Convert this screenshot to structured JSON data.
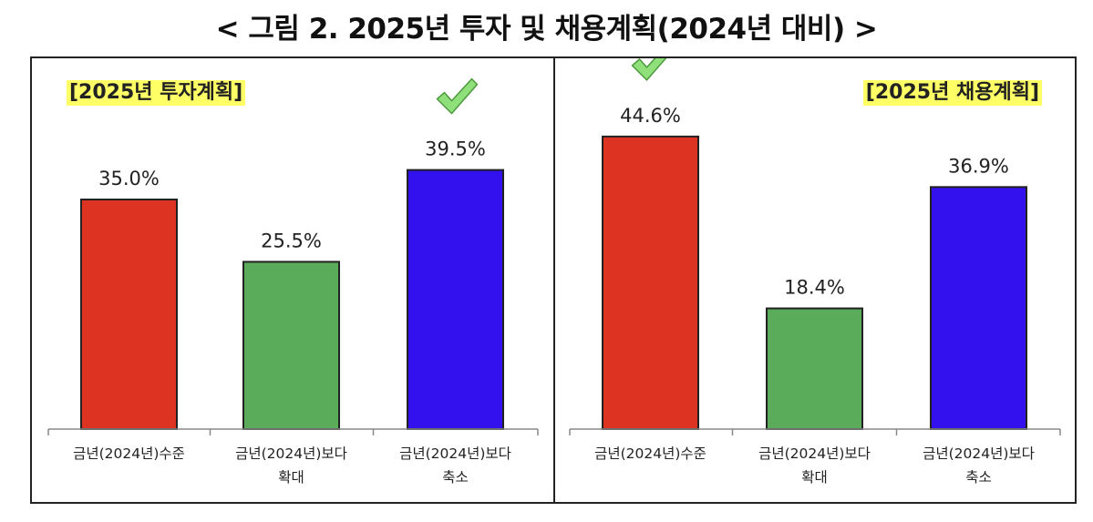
{
  "figure": {
    "title": "< 그림 2. 2025년 투자 및 채용계획(2024년 대비) >"
  },
  "chart_data": [
    {
      "type": "bar",
      "title": "[2025년 투자계획]",
      "categories": [
        [
          "금년(2024년)수준"
        ],
        [
          "금년(2024년)보다",
          "확대"
        ],
        [
          "금년(2024년)보다",
          "축소"
        ]
      ],
      "values": [
        35.0,
        25.5,
        39.5
      ],
      "value_labels": [
        "35.0%",
        "25.5%",
        "39.5%"
      ],
      "bar_colors": [
        "#dd3322",
        "#5aab5a",
        "#3311ee"
      ],
      "label_colors": [
        "#222222",
        "#222222",
        "#3322cc"
      ],
      "highlight_index": 2,
      "highlight_icon": "checkmark-icon",
      "xlabel": "",
      "ylabel": "",
      "ylim": [
        0,
        50
      ],
      "grid": false,
      "legend": "none"
    },
    {
      "type": "bar",
      "title": "[2025년 채용계획]",
      "categories": [
        [
          "금년(2024년)수준"
        ],
        [
          "금년(2024년)보다",
          "확대"
        ],
        [
          "금년(2024년)보다",
          "축소"
        ]
      ],
      "values": [
        44.6,
        18.4,
        36.9
      ],
      "value_labels": [
        "44.6%",
        "18.4%",
        "36.9%"
      ],
      "bar_colors": [
        "#dd3322",
        "#5aab5a",
        "#3311ee"
      ],
      "label_colors": [
        "#b03a2e",
        "#222222",
        "#222222"
      ],
      "highlight_index": 0,
      "highlight_icon": "checkmark-icon",
      "xlabel": "",
      "ylabel": "",
      "ylim": [
        0,
        50
      ],
      "grid": false,
      "legend": "none"
    }
  ]
}
